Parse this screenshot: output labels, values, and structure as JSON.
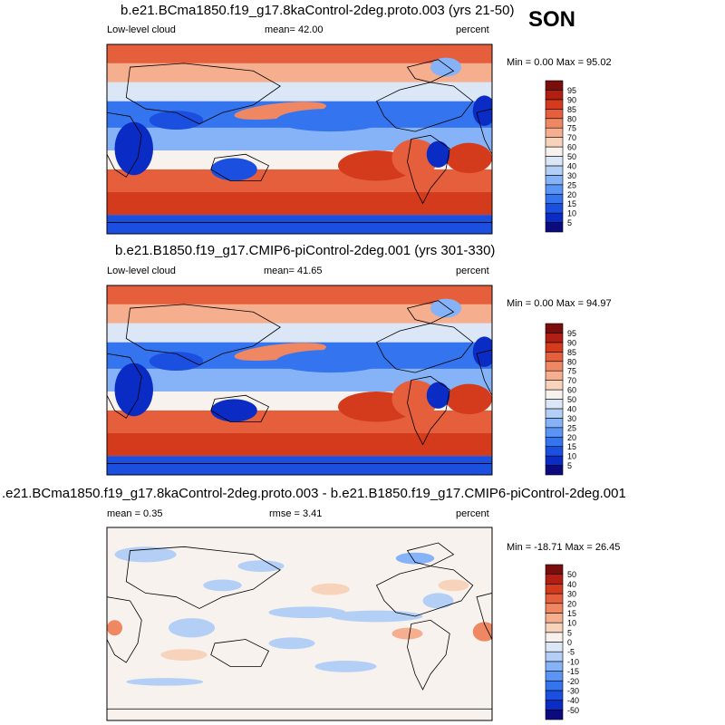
{
  "season": "SON",
  "panels": [
    {
      "title": "b.e21.BCma1850.f19_g17.8kaControl-2deg.proto.003 (yrs 21-50)",
      "left_label": "Low-level cloud",
      "mean_text": "mean=  42.00",
      "units": "percent",
      "minmax": "Min =  0.00 Max =  95.02"
    },
    {
      "title": "b.e21.B1850.f19_g17.CMIP6-piControl-2deg.001 (yrs 301-330)",
      "left_label": "Low-level cloud",
      "mean_text": "mean=  41.65",
      "units": "percent",
      "minmax": "Min =  0.00 Max =  94.97"
    },
    {
      "title": ".e21.BCma1850.f19_g17.8kaControl-2deg.proto.003 - b.e21.B1850.f19_g17.CMIP6-piControl-2deg.001",
      "mean_text": "mean =   0.35",
      "rmse_text": "rmse =   3.41",
      "units": "percent",
      "minmax": "Min = -18.71 Max =  26.45"
    }
  ],
  "chart_data": [
    {
      "type": "heatmap",
      "title": "b.e21.BCma1850.f19_g17.8kaControl-2deg.proto.003 (yrs 21-50)",
      "variable": "Low-level cloud",
      "units": "percent",
      "mean": 42.0,
      "min": 0.0,
      "max": 95.02,
      "colorbar_levels": [
        5,
        10,
        15,
        20,
        25,
        30,
        40,
        50,
        60,
        70,
        75,
        80,
        85,
        90,
        95
      ],
      "colorbar_colors": [
        "#0b0b7d",
        "#0a2bc4",
        "#1a4fe0",
        "#3574ef",
        "#5a95f5",
        "#86b3f7",
        "#b3cff6",
        "#dbe7f7",
        "#f7f2ee",
        "#f8d3bb",
        "#f5ae8e",
        "#ef8763",
        "#e65f3c",
        "#d43b1c",
        "#b11f12",
        "#7b0d0d"
      ]
    },
    {
      "type": "heatmap",
      "title": "b.e21.B1850.f19_g17.CMIP6-piControl-2deg.001 (yrs 301-330)",
      "variable": "Low-level cloud",
      "units": "percent",
      "mean": 41.65,
      "min": 0.0,
      "max": 94.97,
      "colorbar_levels": [
        5,
        10,
        15,
        20,
        25,
        30,
        40,
        50,
        60,
        70,
        75,
        80,
        85,
        90,
        95
      ],
      "colorbar_colors": [
        "#0b0b7d",
        "#0a2bc4",
        "#1a4fe0",
        "#3574ef",
        "#5a95f5",
        "#86b3f7",
        "#b3cff6",
        "#dbe7f7",
        "#f7f2ee",
        "#f8d3bb",
        "#f5ae8e",
        "#ef8763",
        "#e65f3c",
        "#d43b1c",
        "#b11f12",
        "#7b0d0d"
      ]
    },
    {
      "type": "heatmap",
      "title": ".e21.BCma1850.f19_g17.8kaControl-2deg.proto.003 - b.e21.B1850.f19_g17.CMIP6-piControl-2deg.001",
      "units": "percent",
      "mean": 0.35,
      "rmse": 3.41,
      "min": -18.71,
      "max": 26.45,
      "colorbar_levels": [
        -50,
        -40,
        -30,
        -20,
        -15,
        -10,
        -5,
        0,
        5,
        10,
        15,
        20,
        30,
        40,
        50
      ],
      "colorbar_colors": [
        "#0b0b7d",
        "#0a2bc4",
        "#1a4fe0",
        "#3574ef",
        "#5a95f5",
        "#86b3f7",
        "#b3cff6",
        "#dbe7f7",
        "#f7f2ee",
        "#f8d3bb",
        "#f5ae8e",
        "#ef8763",
        "#e65f3c",
        "#d43b1c",
        "#b11f12",
        "#7b0d0d"
      ]
    }
  ]
}
